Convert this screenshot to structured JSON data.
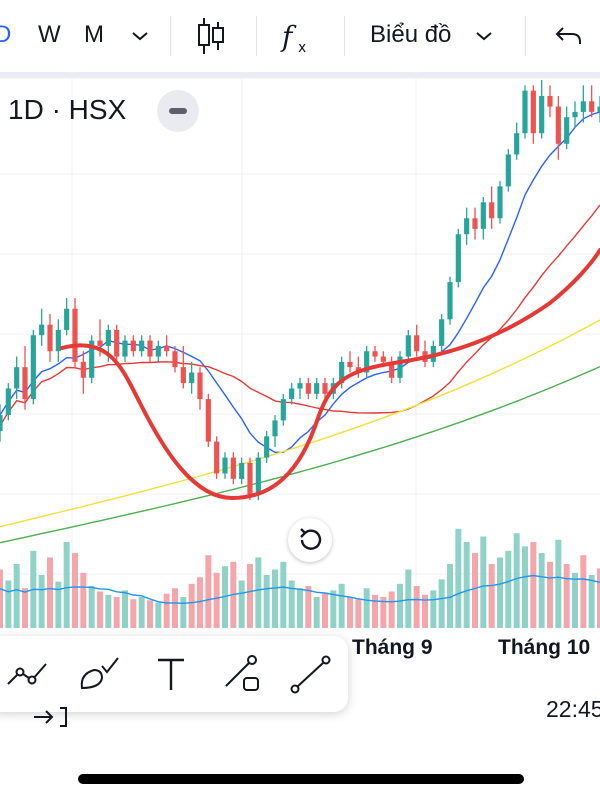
{
  "toolbar": {
    "interval_partial": "D",
    "interval_w": "W",
    "interval_m": "M",
    "chart_type_label": "Biểu đồ",
    "colors": {
      "accent": "#2962ff"
    }
  },
  "legend": {
    "symbol": "1D · HSX"
  },
  "xaxis": {
    "labels": [
      "Tháng 9",
      "Tháng 10"
    ]
  },
  "bottom": {
    "time": "22:45"
  },
  "chart_data": {
    "type": "candlestick",
    "title": "",
    "colors": {
      "up": "#26a69a",
      "down": "#ef5350",
      "vol_up": "#8fd3c8",
      "vol_down": "#f4a6ab"
    },
    "price_range": [
      44,
      132
    ],
    "candles": [
      {
        "o": 66,
        "h": 71,
        "l": 64,
        "c": 69
      },
      {
        "o": 69,
        "h": 75,
        "l": 68,
        "c": 74
      },
      {
        "o": 74,
        "h": 80,
        "l": 72,
        "c": 78
      },
      {
        "o": 78,
        "h": 82,
        "l": 70,
        "c": 72
      },
      {
        "o": 72,
        "h": 85,
        "l": 71,
        "c": 84
      },
      {
        "o": 84,
        "h": 89,
        "l": 82,
        "c": 86
      },
      {
        "o": 86,
        "h": 88,
        "l": 79,
        "c": 81
      },
      {
        "o": 81,
        "h": 87,
        "l": 79,
        "c": 85
      },
      {
        "o": 85,
        "h": 91,
        "l": 84,
        "c": 89
      },
      {
        "o": 89,
        "h": 91,
        "l": 78,
        "c": 79
      },
      {
        "o": 79,
        "h": 81,
        "l": 73,
        "c": 76
      },
      {
        "o": 76,
        "h": 84,
        "l": 75,
        "c": 83
      },
      {
        "o": 83,
        "h": 87,
        "l": 80,
        "c": 82
      },
      {
        "o": 82,
        "h": 86,
        "l": 79,
        "c": 85
      },
      {
        "o": 85,
        "h": 86,
        "l": 79,
        "c": 80
      },
      {
        "o": 80,
        "h": 84,
        "l": 79,
        "c": 83
      },
      {
        "o": 83,
        "h": 84,
        "l": 80,
        "c": 81
      },
      {
        "o": 81,
        "h": 84,
        "l": 80,
        "c": 83
      },
      {
        "o": 83,
        "h": 84,
        "l": 79,
        "c": 80
      },
      {
        "o": 80,
        "h": 83,
        "l": 79,
        "c": 82
      },
      {
        "o": 82,
        "h": 84,
        "l": 80,
        "c": 81
      },
      {
        "o": 81,
        "h": 82,
        "l": 77,
        "c": 78
      },
      {
        "o": 78,
        "h": 82,
        "l": 74,
        "c": 75
      },
      {
        "o": 75,
        "h": 79,
        "l": 73,
        "c": 77
      },
      {
        "o": 77,
        "h": 78,
        "l": 70,
        "c": 72
      },
      {
        "o": 72,
        "h": 73,
        "l": 63,
        "c": 64
      },
      {
        "o": 64,
        "h": 65,
        "l": 57,
        "c": 58
      },
      {
        "o": 58,
        "h": 62,
        "l": 57,
        "c": 61
      },
      {
        "o": 61,
        "h": 62,
        "l": 56,
        "c": 57
      },
      {
        "o": 57,
        "h": 61,
        "l": 56,
        "c": 60
      },
      {
        "o": 60,
        "h": 61,
        "l": 53,
        "c": 54
      },
      {
        "o": 54,
        "h": 62,
        "l": 53,
        "c": 61
      },
      {
        "o": 61,
        "h": 66,
        "l": 60,
        "c": 65
      },
      {
        "o": 65,
        "h": 69,
        "l": 63,
        "c": 68
      },
      {
        "o": 68,
        "h": 73,
        "l": 67,
        "c": 72
      },
      {
        "o": 72,
        "h": 75,
        "l": 71,
        "c": 74
      },
      {
        "o": 74,
        "h": 76,
        "l": 72,
        "c": 75
      },
      {
        "o": 75,
        "h": 76,
        "l": 72,
        "c": 73
      },
      {
        "o": 73,
        "h": 76,
        "l": 72,
        "c": 75
      },
      {
        "o": 75,
        "h": 76,
        "l": 72,
        "c": 73
      },
      {
        "o": 73,
        "h": 76,
        "l": 72,
        "c": 75
      },
      {
        "o": 75,
        "h": 80,
        "l": 74,
        "c": 79
      },
      {
        "o": 79,
        "h": 81,
        "l": 77,
        "c": 78
      },
      {
        "o": 78,
        "h": 80,
        "l": 76,
        "c": 77
      },
      {
        "o": 77,
        "h": 82,
        "l": 76,
        "c": 81
      },
      {
        "o": 81,
        "h": 82,
        "l": 79,
        "c": 80
      },
      {
        "o": 80,
        "h": 81,
        "l": 78,
        "c": 79
      },
      {
        "o": 79,
        "h": 80,
        "l": 75,
        "c": 76
      },
      {
        "o": 76,
        "h": 81,
        "l": 75,
        "c": 80
      },
      {
        "o": 80,
        "h": 85,
        "l": 79,
        "c": 84
      },
      {
        "o": 84,
        "h": 86,
        "l": 80,
        "c": 81
      },
      {
        "o": 81,
        "h": 83,
        "l": 78,
        "c": 79
      },
      {
        "o": 79,
        "h": 83,
        "l": 78,
        "c": 82
      },
      {
        "o": 82,
        "h": 88,
        "l": 81,
        "c": 87
      },
      {
        "o": 87,
        "h": 95,
        "l": 86,
        "c": 94
      },
      {
        "o": 94,
        "h": 104,
        "l": 93,
        "c": 103
      },
      {
        "o": 103,
        "h": 108,
        "l": 101,
        "c": 106
      },
      {
        "o": 106,
        "h": 108,
        "l": 102,
        "c": 104
      },
      {
        "o": 104,
        "h": 110,
        "l": 102,
        "c": 109
      },
      {
        "o": 109,
        "h": 112,
        "l": 104,
        "c": 106
      },
      {
        "o": 106,
        "h": 113,
        "l": 105,
        "c": 112
      },
      {
        "o": 112,
        "h": 119,
        "l": 111,
        "c": 118
      },
      {
        "o": 118,
        "h": 124,
        "l": 117,
        "c": 122
      },
      {
        "o": 122,
        "h": 131,
        "l": 121,
        "c": 130
      },
      {
        "o": 130,
        "h": 131,
        "l": 120,
        "c": 122
      },
      {
        "o": 122,
        "h": 132,
        "l": 121,
        "c": 129
      },
      {
        "o": 129,
        "h": 131,
        "l": 125,
        "c": 127
      },
      {
        "o": 127,
        "h": 129,
        "l": 117,
        "c": 120
      },
      {
        "o": 120,
        "h": 127,
        "l": 119,
        "c": 125
      },
      {
        "o": 125,
        "h": 128,
        "l": 123,
        "c": 126
      },
      {
        "o": 126,
        "h": 131,
        "l": 124,
        "c": 128
      },
      {
        "o": 128,
        "h": 131,
        "l": 125,
        "c": 126
      },
      {
        "o": 126,
        "h": 129,
        "l": 124,
        "c": 127
      }
    ],
    "volumes": [
      {
        "v": 0.55,
        "up": false
      },
      {
        "v": 0.45,
        "up": true
      },
      {
        "v": 0.6,
        "up": true
      },
      {
        "v": 0.38,
        "up": false
      },
      {
        "v": 0.72,
        "up": true
      },
      {
        "v": 0.5,
        "up": true
      },
      {
        "v": 0.66,
        "up": false
      },
      {
        "v": 0.44,
        "up": true
      },
      {
        "v": 0.8,
        "up": true
      },
      {
        "v": 0.7,
        "up": false
      },
      {
        "v": 0.52,
        "up": false
      },
      {
        "v": 0.4,
        "up": true
      },
      {
        "v": 0.35,
        "up": false
      },
      {
        "v": 0.32,
        "up": true
      },
      {
        "v": 0.3,
        "up": false
      },
      {
        "v": 0.36,
        "up": true
      },
      {
        "v": 0.28,
        "up": false
      },
      {
        "v": 0.3,
        "up": true
      },
      {
        "v": 0.27,
        "up": false
      },
      {
        "v": 0.25,
        "up": true
      },
      {
        "v": 0.33,
        "up": false
      },
      {
        "v": 0.38,
        "up": false
      },
      {
        "v": 0.3,
        "up": true
      },
      {
        "v": 0.42,
        "up": false
      },
      {
        "v": 0.48,
        "up": false
      },
      {
        "v": 0.68,
        "up": false
      },
      {
        "v": 0.52,
        "up": false
      },
      {
        "v": 0.58,
        "up": true
      },
      {
        "v": 0.62,
        "up": false
      },
      {
        "v": 0.45,
        "up": true
      },
      {
        "v": 0.6,
        "up": false
      },
      {
        "v": 0.66,
        "up": true
      },
      {
        "v": 0.5,
        "up": true
      },
      {
        "v": 0.55,
        "up": true
      },
      {
        "v": 0.62,
        "up": true
      },
      {
        "v": 0.45,
        "up": true
      },
      {
        "v": 0.38,
        "up": true
      },
      {
        "v": 0.4,
        "up": false
      },
      {
        "v": 0.3,
        "up": true
      },
      {
        "v": 0.33,
        "up": false
      },
      {
        "v": 0.36,
        "up": true
      },
      {
        "v": 0.42,
        "up": true
      },
      {
        "v": 0.3,
        "up": false
      },
      {
        "v": 0.28,
        "up": false
      },
      {
        "v": 0.38,
        "up": true
      },
      {
        "v": 0.32,
        "up": false
      },
      {
        "v": 0.3,
        "up": false
      },
      {
        "v": 0.35,
        "up": false
      },
      {
        "v": 0.42,
        "up": true
      },
      {
        "v": 0.55,
        "up": true
      },
      {
        "v": 0.4,
        "up": false
      },
      {
        "v": 0.32,
        "up": false
      },
      {
        "v": 0.36,
        "up": true
      },
      {
        "v": 0.46,
        "up": true
      },
      {
        "v": 0.6,
        "up": true
      },
      {
        "v": 0.92,
        "up": true
      },
      {
        "v": 0.8,
        "up": true
      },
      {
        "v": 0.7,
        "up": false
      },
      {
        "v": 0.85,
        "up": true
      },
      {
        "v": 0.6,
        "up": false
      },
      {
        "v": 0.66,
        "up": true
      },
      {
        "v": 0.72,
        "up": true
      },
      {
        "v": 0.88,
        "up": true
      },
      {
        "v": 0.76,
        "up": true
      },
      {
        "v": 0.8,
        "up": false
      },
      {
        "v": 0.7,
        "up": true
      },
      {
        "v": 0.62,
        "up": false
      },
      {
        "v": 0.82,
        "up": true
      },
      {
        "v": 0.6,
        "up": false
      },
      {
        "v": 0.52,
        "up": true
      },
      {
        "v": 0.68,
        "up": false
      },
      {
        "v": 0.5,
        "up": true
      },
      {
        "v": 0.56,
        "up": false
      }
    ]
  }
}
